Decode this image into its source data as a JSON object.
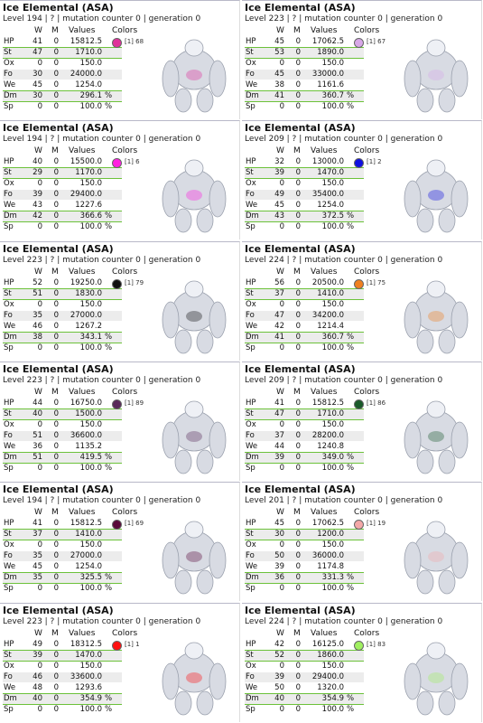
{
  "headers": [
    "W",
    "M",
    "Values",
    "Colors"
  ],
  "cards": [
    {
      "title": "Ice Elemental (ASA)",
      "level_line": "Level 194 | ? | mutation counter 0 | generation 0",
      "swatch": {
        "color": "#e0309a",
        "label": "[1] 68"
      },
      "stats": [
        {
          "name": "HP",
          "w": "41",
          "m": "0",
          "value": "15812.5",
          "highlight": true
        },
        {
          "name": "St",
          "w": "47",
          "m": "0",
          "value": "1710.0",
          "highlight": true
        },
        {
          "name": "Ox",
          "w": "0",
          "m": "0",
          "value": "150.0",
          "highlight": false
        },
        {
          "name": "Fo",
          "w": "30",
          "m": "0",
          "value": "24000.0",
          "highlight": false
        },
        {
          "name": "We",
          "w": "45",
          "m": "0",
          "value": "1254.0",
          "highlight": true
        },
        {
          "name": "Dm",
          "w": "30",
          "m": "0",
          "value": "296.1",
          "unit": "%",
          "highlight": true
        },
        {
          "name": "Sp",
          "w": "0",
          "m": "0",
          "value": "100.0",
          "unit": "%",
          "highlight": false
        }
      ]
    },
    {
      "title": "Ice Elemental (ASA)",
      "level_line": "Level 223 | ? | mutation counter 0 | generation 0",
      "swatch": {
        "color": "#d8a8e8",
        "label": "[1] 67"
      },
      "stats": [
        {
          "name": "HP",
          "w": "45",
          "m": "0",
          "value": "17062.5",
          "highlight": true
        },
        {
          "name": "St",
          "w": "53",
          "m": "0",
          "value": "1890.0",
          "highlight": true
        },
        {
          "name": "Ox",
          "w": "0",
          "m": "0",
          "value": "150.0",
          "highlight": false
        },
        {
          "name": "Fo",
          "w": "45",
          "m": "0",
          "value": "33000.0",
          "highlight": false
        },
        {
          "name": "We",
          "w": "38",
          "m": "0",
          "value": "1161.6",
          "highlight": true
        },
        {
          "name": "Dm",
          "w": "41",
          "m": "0",
          "value": "360.7",
          "unit": "%",
          "highlight": true
        },
        {
          "name": "Sp",
          "w": "0",
          "m": "0",
          "value": "100.0",
          "unit": "%",
          "highlight": false
        }
      ]
    },
    {
      "title": "Ice Elemental (ASA)",
      "level_line": "Level 194 | ? | mutation counter 0 | generation 0",
      "swatch": {
        "color": "#ff20e0",
        "label": "[1] 6"
      },
      "stats": [
        {
          "name": "HP",
          "w": "40",
          "m": "0",
          "value": "15500.0",
          "highlight": true
        },
        {
          "name": "St",
          "w": "29",
          "m": "0",
          "value": "1170.0",
          "highlight": true
        },
        {
          "name": "Ox",
          "w": "0",
          "m": "0",
          "value": "150.0",
          "highlight": false
        },
        {
          "name": "Fo",
          "w": "39",
          "m": "0",
          "value": "29400.0",
          "highlight": false
        },
        {
          "name": "We",
          "w": "43",
          "m": "0",
          "value": "1227.6",
          "highlight": true
        },
        {
          "name": "Dm",
          "w": "42",
          "m": "0",
          "value": "366.6",
          "unit": "%",
          "highlight": true
        },
        {
          "name": "Sp",
          "w": "0",
          "m": "0",
          "value": "100.0",
          "unit": "%",
          "highlight": false
        }
      ]
    },
    {
      "title": "Ice Elemental (ASA)",
      "level_line": "Level 209 | ? | mutation counter 0 | generation 0",
      "swatch": {
        "color": "#1010e0",
        "label": "[1] 2"
      },
      "stats": [
        {
          "name": "HP",
          "w": "32",
          "m": "0",
          "value": "13000.0",
          "highlight": true
        },
        {
          "name": "St",
          "w": "39",
          "m": "0",
          "value": "1470.0",
          "highlight": true
        },
        {
          "name": "Ox",
          "w": "0",
          "m": "0",
          "value": "150.0",
          "highlight": false
        },
        {
          "name": "Fo",
          "w": "49",
          "m": "0",
          "value": "35400.0",
          "highlight": false
        },
        {
          "name": "We",
          "w": "45",
          "m": "0",
          "value": "1254.0",
          "highlight": true
        },
        {
          "name": "Dm",
          "w": "43",
          "m": "0",
          "value": "372.5",
          "unit": "%",
          "highlight": true
        },
        {
          "name": "Sp",
          "w": "0",
          "m": "0",
          "value": "100.0",
          "unit": "%",
          "highlight": false
        }
      ]
    },
    {
      "title": "Ice Elemental (ASA)",
      "level_line": "Level 223 | ? | mutation counter 0 | generation 0",
      "swatch": {
        "color": "#111111",
        "label": "[1] 79"
      },
      "stats": [
        {
          "name": "HP",
          "w": "52",
          "m": "0",
          "value": "19250.0",
          "highlight": true
        },
        {
          "name": "St",
          "w": "51",
          "m": "0",
          "value": "1830.0",
          "highlight": true
        },
        {
          "name": "Ox",
          "w": "0",
          "m": "0",
          "value": "150.0",
          "highlight": false
        },
        {
          "name": "Fo",
          "w": "35",
          "m": "0",
          "value": "27000.0",
          "highlight": false
        },
        {
          "name": "We",
          "w": "46",
          "m": "0",
          "value": "1267.2",
          "highlight": true
        },
        {
          "name": "Dm",
          "w": "38",
          "m": "0",
          "value": "343.1",
          "unit": "%",
          "highlight": true
        },
        {
          "name": "Sp",
          "w": "0",
          "m": "0",
          "value": "100.0",
          "unit": "%",
          "highlight": false
        }
      ]
    },
    {
      "title": "Ice Elemental (ASA)",
      "level_line": "Level 224 | ? | mutation counter 0 | generation 0",
      "swatch": {
        "color": "#f08020",
        "label": "[1] 75"
      },
      "stats": [
        {
          "name": "HP",
          "w": "56",
          "m": "0",
          "value": "20500.0",
          "highlight": true
        },
        {
          "name": "St",
          "w": "37",
          "m": "0",
          "value": "1410.0",
          "highlight": true
        },
        {
          "name": "Ox",
          "w": "0",
          "m": "0",
          "value": "150.0",
          "highlight": false
        },
        {
          "name": "Fo",
          "w": "47",
          "m": "0",
          "value": "34200.0",
          "highlight": false
        },
        {
          "name": "We",
          "w": "42",
          "m": "0",
          "value": "1214.4",
          "highlight": true
        },
        {
          "name": "Dm",
          "w": "41",
          "m": "0",
          "value": "360.7",
          "unit": "%",
          "highlight": true
        },
        {
          "name": "Sp",
          "w": "0",
          "m": "0",
          "value": "100.0",
          "unit": "%",
          "highlight": false
        }
      ]
    },
    {
      "title": "Ice Elemental (ASA)",
      "level_line": "Level 223 | ? | mutation counter 0 | generation 0",
      "swatch": {
        "color": "#5a2a5a",
        "label": "[1] 89"
      },
      "stats": [
        {
          "name": "HP",
          "w": "44",
          "m": "0",
          "value": "16750.0",
          "highlight": true
        },
        {
          "name": "St",
          "w": "40",
          "m": "0",
          "value": "1500.0",
          "highlight": true
        },
        {
          "name": "Ox",
          "w": "0",
          "m": "0",
          "value": "150.0",
          "highlight": false
        },
        {
          "name": "Fo",
          "w": "51",
          "m": "0",
          "value": "36600.0",
          "highlight": false
        },
        {
          "name": "We",
          "w": "36",
          "m": "0",
          "value": "1135.2",
          "highlight": true
        },
        {
          "name": "Dm",
          "w": "51",
          "m": "0",
          "value": "419.5",
          "unit": "%",
          "highlight": true
        },
        {
          "name": "Sp",
          "w": "0",
          "m": "0",
          "value": "100.0",
          "unit": "%",
          "highlight": false
        }
      ]
    },
    {
      "title": "Ice Elemental (ASA)",
      "level_line": "Level 209 | ? | mutation counter 0 | generation 0",
      "swatch": {
        "color": "#1a5a2a",
        "label": "[1] 86"
      },
      "stats": [
        {
          "name": "HP",
          "w": "41",
          "m": "0",
          "value": "15812.5",
          "highlight": true
        },
        {
          "name": "St",
          "w": "47",
          "m": "0",
          "value": "1710.0",
          "highlight": true
        },
        {
          "name": "Ox",
          "w": "0",
          "m": "0",
          "value": "150.0",
          "highlight": false
        },
        {
          "name": "Fo",
          "w": "37",
          "m": "0",
          "value": "28200.0",
          "highlight": false
        },
        {
          "name": "We",
          "w": "44",
          "m": "0",
          "value": "1240.8",
          "highlight": true
        },
        {
          "name": "Dm",
          "w": "39",
          "m": "0",
          "value": "349.0",
          "unit": "%",
          "highlight": true
        },
        {
          "name": "Sp",
          "w": "0",
          "m": "0",
          "value": "100.0",
          "unit": "%",
          "highlight": false
        }
      ]
    },
    {
      "title": "Ice Elemental (ASA)",
      "level_line": "Level 194 | ? | mutation counter 0 | generation 0",
      "swatch": {
        "color": "#5a0a3a",
        "label": "[1] 69"
      },
      "stats": [
        {
          "name": "HP",
          "w": "41",
          "m": "0",
          "value": "15812.5",
          "highlight": true
        },
        {
          "name": "St",
          "w": "37",
          "m": "0",
          "value": "1410.0",
          "highlight": true
        },
        {
          "name": "Ox",
          "w": "0",
          "m": "0",
          "value": "150.0",
          "highlight": false
        },
        {
          "name": "Fo",
          "w": "35",
          "m": "0",
          "value": "27000.0",
          "highlight": false
        },
        {
          "name": "We",
          "w": "45",
          "m": "0",
          "value": "1254.0",
          "highlight": true
        },
        {
          "name": "Dm",
          "w": "35",
          "m": "0",
          "value": "325.5",
          "unit": "%",
          "highlight": true
        },
        {
          "name": "Sp",
          "w": "0",
          "m": "0",
          "value": "100.0",
          "unit": "%",
          "highlight": false
        }
      ]
    },
    {
      "title": "Ice Elemental (ASA)",
      "level_line": "Level 201 | ? | mutation counter 0 | generation 0",
      "swatch": {
        "color": "#f4a8a8",
        "label": "[1] 19"
      },
      "stats": [
        {
          "name": "HP",
          "w": "45",
          "m": "0",
          "value": "17062.5",
          "highlight": true
        },
        {
          "name": "St",
          "w": "30",
          "m": "0",
          "value": "1200.0",
          "highlight": true
        },
        {
          "name": "Ox",
          "w": "0",
          "m": "0",
          "value": "150.0",
          "highlight": false
        },
        {
          "name": "Fo",
          "w": "50",
          "m": "0",
          "value": "36000.0",
          "highlight": false
        },
        {
          "name": "We",
          "w": "39",
          "m": "0",
          "value": "1174.8",
          "highlight": true
        },
        {
          "name": "Dm",
          "w": "36",
          "m": "0",
          "value": "331.3",
          "unit": "%",
          "highlight": true
        },
        {
          "name": "Sp",
          "w": "0",
          "m": "0",
          "value": "100.0",
          "unit": "%",
          "highlight": false
        }
      ]
    },
    {
      "title": "Ice Elemental (ASA)",
      "level_line": "Level 223 | ? | mutation counter 0 | generation 0",
      "swatch": {
        "color": "#ff1010",
        "label": "[1] 1"
      },
      "stats": [
        {
          "name": "HP",
          "w": "49",
          "m": "0",
          "value": "18312.5",
          "highlight": true
        },
        {
          "name": "St",
          "w": "39",
          "m": "0",
          "value": "1470.0",
          "highlight": true
        },
        {
          "name": "Ox",
          "w": "0",
          "m": "0",
          "value": "150.0",
          "highlight": false
        },
        {
          "name": "Fo",
          "w": "46",
          "m": "0",
          "value": "33600.0",
          "highlight": false
        },
        {
          "name": "We",
          "w": "48",
          "m": "0",
          "value": "1293.6",
          "highlight": true
        },
        {
          "name": "Dm",
          "w": "40",
          "m": "0",
          "value": "354.9",
          "unit": "%",
          "highlight": true
        },
        {
          "name": "Sp",
          "w": "0",
          "m": "0",
          "value": "100.0",
          "unit": "%",
          "highlight": false
        }
      ]
    },
    {
      "title": "Ice Elemental (ASA)",
      "level_line": "Level 224 | ? | mutation counter 0 | generation 0",
      "swatch": {
        "color": "#a0f060",
        "label": "[1] 83"
      },
      "stats": [
        {
          "name": "HP",
          "w": "42",
          "m": "0",
          "value": "16125.0",
          "highlight": true
        },
        {
          "name": "St",
          "w": "52",
          "m": "0",
          "value": "1860.0",
          "highlight": true
        },
        {
          "name": "Ox",
          "w": "0",
          "m": "0",
          "value": "150.0",
          "highlight": false
        },
        {
          "name": "Fo",
          "w": "39",
          "m": "0",
          "value": "29400.0",
          "highlight": false
        },
        {
          "name": "We",
          "w": "50",
          "m": "0",
          "value": "1320.0",
          "highlight": true
        },
        {
          "name": "Dm",
          "w": "40",
          "m": "0",
          "value": "354.9",
          "unit": "%",
          "highlight": true
        },
        {
          "name": "Sp",
          "w": "0",
          "m": "0",
          "value": "100.0",
          "unit": "%",
          "highlight": false
        }
      ]
    }
  ]
}
